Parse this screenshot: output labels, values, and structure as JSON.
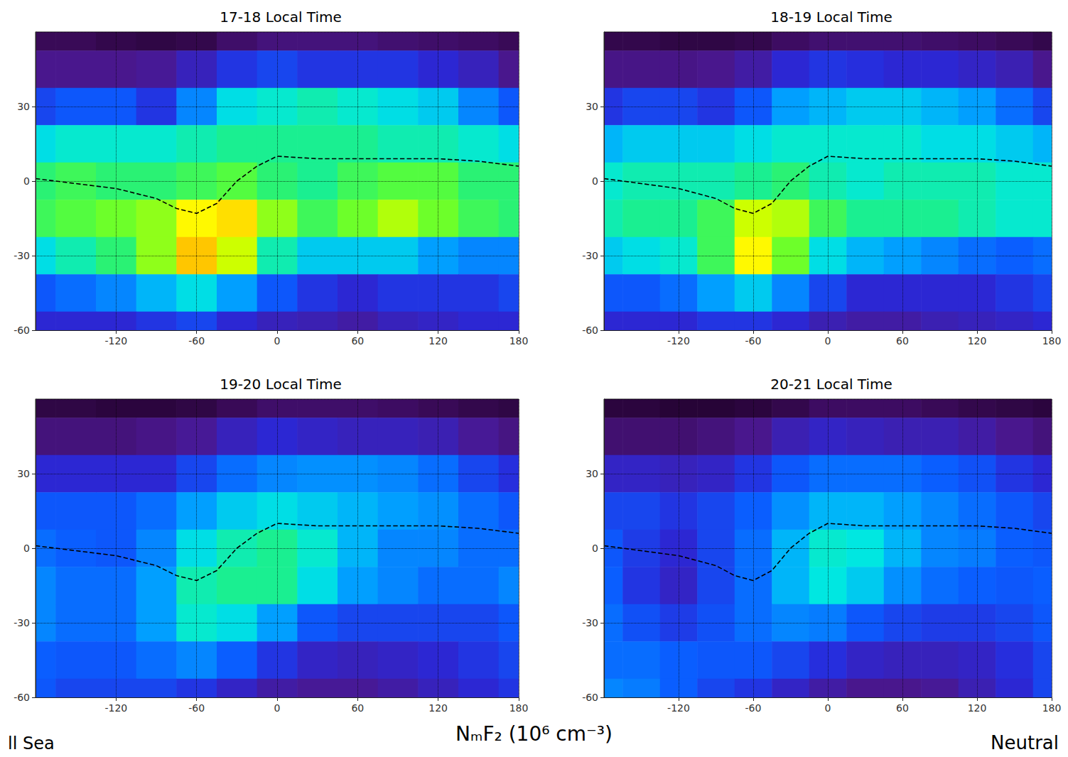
{
  "chart_data": [
    {
      "type": "heatmap",
      "title": "17-18 Local Time",
      "x": [
        -180,
        -150,
        -120,
        -90,
        -60,
        -30,
        0,
        30,
        60,
        90,
        120,
        150,
        180
      ],
      "y": [
        60,
        45,
        30,
        15,
        0,
        -15,
        -30,
        -45,
        -60
      ],
      "values": [
        [
          0.15,
          0.15,
          0.12,
          0.1,
          0.12,
          0.2,
          0.25,
          0.25,
          0.25,
          0.22,
          0.2,
          0.18,
          0.15
        ],
        [
          0.3,
          0.3,
          0.3,
          0.32,
          0.4,
          0.5,
          0.55,
          0.5,
          0.5,
          0.5,
          0.45,
          0.4,
          0.3
        ],
        [
          0.55,
          0.6,
          0.6,
          0.5,
          0.7,
          0.9,
          0.95,
          1.0,
          0.95,
          0.9,
          0.85,
          0.7,
          0.6
        ],
        [
          0.9,
          0.95,
          0.95,
          0.95,
          1.0,
          1.05,
          1.05,
          1.05,
          1.05,
          1.0,
          1.0,
          0.95,
          0.9
        ],
        [
          1.1,
          1.15,
          1.1,
          1.1,
          1.15,
          1.2,
          1.1,
          1.05,
          1.15,
          1.2,
          1.2,
          1.1,
          1.1
        ],
        [
          1.15,
          1.2,
          1.25,
          1.3,
          1.55,
          1.6,
          1.3,
          1.15,
          1.25,
          1.35,
          1.25,
          1.15,
          1.1
        ],
        [
          0.9,
          1.0,
          1.1,
          1.3,
          1.65,
          1.4,
          1.0,
          0.85,
          0.85,
          0.85,
          0.75,
          0.7,
          0.7
        ],
        [
          0.6,
          0.65,
          0.7,
          0.8,
          0.9,
          0.75,
          0.6,
          0.5,
          0.45,
          0.5,
          0.5,
          0.5,
          0.55
        ],
        [
          0.45,
          0.45,
          0.45,
          0.5,
          0.55,
          0.45,
          0.4,
          0.38,
          0.35,
          0.4,
          0.42,
          0.45,
          0.45
        ]
      ],
      "magnetic_equator": {
        "x": [
          -180,
          -150,
          -120,
          -90,
          -75,
          -60,
          -45,
          -30,
          -15,
          0,
          30,
          60,
          90,
          120,
          150,
          180
        ],
        "y": [
          1,
          -1,
          -3,
          -7,
          -11,
          -13,
          -9,
          0,
          6,
          10,
          9,
          9,
          9,
          9,
          8,
          6
        ],
        "line_style": "dashed",
        "color": "#000000"
      },
      "xlim": [
        -180,
        180
      ],
      "xticks": [
        -120,
        -60,
        0,
        60,
        120,
        180
      ],
      "ylim": [
        -60,
        60
      ],
      "yticks": [
        -60,
        -30,
        0,
        30
      ],
      "color_range": [
        0,
        2
      ],
      "grid": true
    },
    {
      "type": "heatmap",
      "title": "18-19 Local Time",
      "x": [
        -180,
        -150,
        -120,
        -90,
        -60,
        -30,
        0,
        30,
        60,
        90,
        120,
        150,
        180
      ],
      "y": [
        60,
        45,
        30,
        15,
        0,
        -15,
        -30,
        -45,
        -60
      ],
      "values": [
        [
          0.12,
          0.12,
          0.1,
          0.1,
          0.12,
          0.18,
          0.22,
          0.22,
          0.22,
          0.2,
          0.18,
          0.15,
          0.12
        ],
        [
          0.28,
          0.28,
          0.28,
          0.3,
          0.35,
          0.45,
          0.5,
          0.48,
          0.45,
          0.45,
          0.42,
          0.38,
          0.3
        ],
        [
          0.5,
          0.55,
          0.55,
          0.5,
          0.6,
          0.75,
          0.8,
          0.85,
          0.85,
          0.8,
          0.75,
          0.65,
          0.55
        ],
        [
          0.8,
          0.85,
          0.85,
          0.85,
          0.9,
          0.95,
          0.95,
          0.95,
          0.95,
          0.9,
          0.9,
          0.85,
          0.8
        ],
        [
          0.95,
          1.0,
          1.0,
          1.0,
          1.05,
          1.1,
          1.0,
          0.95,
          1.0,
          1.0,
          1.0,
          0.95,
          0.95
        ],
        [
          1.0,
          1.05,
          1.05,
          1.15,
          1.4,
          1.35,
          1.15,
          1.05,
          1.05,
          1.05,
          1.0,
          0.95,
          0.95
        ],
        [
          0.85,
          0.9,
          0.95,
          1.15,
          1.55,
          1.25,
          0.9,
          0.8,
          0.75,
          0.7,
          0.65,
          0.62,
          0.65
        ],
        [
          0.6,
          0.6,
          0.65,
          0.75,
          0.85,
          0.7,
          0.55,
          0.45,
          0.45,
          0.45,
          0.45,
          0.5,
          0.55
        ],
        [
          0.45,
          0.45,
          0.45,
          0.5,
          0.5,
          0.45,
          0.38,
          0.35,
          0.35,
          0.38,
          0.4,
          0.42,
          0.45
        ]
      ],
      "magnetic_equator": {
        "x": [
          -180,
          -150,
          -120,
          -90,
          -75,
          -60,
          -45,
          -30,
          -15,
          0,
          30,
          60,
          90,
          120,
          150,
          180
        ],
        "y": [
          1,
          -1,
          -3,
          -7,
          -11,
          -13,
          -9,
          0,
          6,
          10,
          9,
          9,
          9,
          9,
          8,
          6
        ],
        "line_style": "dashed",
        "color": "#000000"
      },
      "xlim": [
        -180,
        180
      ],
      "xticks": [
        -120,
        -60,
        0,
        60,
        120,
        180
      ],
      "ylim": [
        -60,
        60
      ],
      "yticks": [
        -60,
        -30,
        0,
        30
      ],
      "color_range": [
        0,
        2
      ],
      "grid": true
    },
    {
      "type": "heatmap",
      "title": "19-20 Local Time",
      "x": [
        -180,
        -150,
        -120,
        -90,
        -60,
        -30,
        0,
        30,
        60,
        90,
        120,
        150,
        180
      ],
      "y": [
        60,
        45,
        30,
        15,
        0,
        -15,
        -30,
        -45,
        -60
      ],
      "values": [
        [
          0.1,
          0.1,
          0.08,
          0.08,
          0.1,
          0.15,
          0.2,
          0.2,
          0.2,
          0.18,
          0.15,
          0.12,
          0.1
        ],
        [
          0.25,
          0.25,
          0.25,
          0.28,
          0.32,
          0.4,
          0.45,
          0.42,
          0.4,
          0.4,
          0.38,
          0.32,
          0.27
        ],
        [
          0.45,
          0.45,
          0.45,
          0.45,
          0.55,
          0.65,
          0.7,
          0.72,
          0.72,
          0.7,
          0.65,
          0.55,
          0.48
        ],
        [
          0.6,
          0.6,
          0.6,
          0.65,
          0.75,
          0.85,
          0.9,
          0.85,
          0.8,
          0.75,
          0.72,
          0.65,
          0.6
        ],
        [
          0.65,
          0.62,
          0.6,
          0.7,
          0.9,
          1.0,
          1.05,
          0.95,
          0.8,
          0.7,
          0.7,
          0.65,
          0.65
        ],
        [
          0.7,
          0.65,
          0.65,
          0.75,
          1.0,
          1.05,
          1.05,
          0.9,
          0.75,
          0.7,
          0.65,
          0.65,
          0.7
        ],
        [
          0.7,
          0.65,
          0.65,
          0.75,
          0.95,
          0.9,
          0.75,
          0.6,
          0.55,
          0.55,
          0.55,
          0.55,
          0.6
        ],
        [
          0.62,
          0.6,
          0.6,
          0.65,
          0.7,
          0.62,
          0.5,
          0.42,
          0.4,
          0.42,
          0.45,
          0.5,
          0.55
        ],
        [
          0.6,
          0.55,
          0.55,
          0.55,
          0.5,
          0.42,
          0.35,
          0.32,
          0.32,
          0.35,
          0.4,
          0.45,
          0.5
        ]
      ],
      "magnetic_equator": {
        "x": [
          -180,
          -150,
          -120,
          -90,
          -75,
          -60,
          -45,
          -30,
          -15,
          0,
          30,
          60,
          90,
          120,
          150,
          180
        ],
        "y": [
          1,
          -1,
          -3,
          -7,
          -11,
          -13,
          -9,
          0,
          6,
          10,
          9,
          9,
          9,
          9,
          8,
          6
        ],
        "line_style": "dashed",
        "color": "#000000"
      },
      "xlim": [
        -180,
        180
      ],
      "xticks": [
        -120,
        -60,
        0,
        60,
        120,
        180
      ],
      "ylim": [
        -60,
        60
      ],
      "yticks": [
        -60,
        -30,
        0,
        30
      ],
      "color_range": [
        0,
        2
      ],
      "grid": true
    },
    {
      "type": "heatmap",
      "title": "20-21 Local Time",
      "x": [
        -180,
        -150,
        -120,
        -90,
        -60,
        -30,
        0,
        30,
        60,
        90,
        120,
        150,
        180
      ],
      "y": [
        60,
        45,
        30,
        15,
        0,
        -15,
        -30,
        -45,
        -60
      ],
      "values": [
        [
          0.08,
          0.08,
          0.06,
          0.06,
          0.08,
          0.12,
          0.18,
          0.18,
          0.18,
          0.15,
          0.12,
          0.1,
          0.08
        ],
        [
          0.22,
          0.22,
          0.22,
          0.25,
          0.3,
          0.38,
          0.42,
          0.4,
          0.38,
          0.38,
          0.35,
          0.3,
          0.25
        ],
        [
          0.42,
          0.42,
          0.4,
          0.42,
          0.5,
          0.6,
          0.65,
          0.65,
          0.65,
          0.62,
          0.58,
          0.5,
          0.45
        ],
        [
          0.55,
          0.55,
          0.5,
          0.55,
          0.62,
          0.72,
          0.8,
          0.8,
          0.75,
          0.7,
          0.65,
          0.6,
          0.55
        ],
        [
          0.6,
          0.52,
          0.45,
          0.55,
          0.65,
          0.8,
          0.95,
          0.92,
          0.8,
          0.7,
          0.68,
          0.62,
          0.6
        ],
        [
          0.62,
          0.5,
          0.42,
          0.55,
          0.65,
          0.8,
          0.92,
          0.85,
          0.72,
          0.65,
          0.62,
          0.6,
          0.62
        ],
        [
          0.65,
          0.58,
          0.52,
          0.58,
          0.65,
          0.7,
          0.68,
          0.6,
          0.55,
          0.52,
          0.52,
          0.55,
          0.6
        ],
        [
          0.65,
          0.65,
          0.62,
          0.6,
          0.6,
          0.55,
          0.48,
          0.42,
          0.4,
          0.4,
          0.42,
          0.48,
          0.55
        ],
        [
          0.7,
          0.68,
          0.62,
          0.55,
          0.5,
          0.42,
          0.35,
          0.3,
          0.3,
          0.32,
          0.38,
          0.45,
          0.55
        ]
      ],
      "magnetic_equator": {
        "x": [
          -180,
          -150,
          -120,
          -90,
          -75,
          -60,
          -45,
          -30,
          -15,
          0,
          30,
          60,
          90,
          120,
          150,
          180
        ],
        "y": [
          1,
          -1,
          -3,
          -7,
          -11,
          -13,
          -9,
          0,
          6,
          10,
          9,
          9,
          9,
          9,
          8,
          6
        ],
        "line_style": "dashed",
        "color": "#000000"
      },
      "xlim": [
        -180,
        180
      ],
      "xticks": [
        -120,
        -60,
        0,
        60,
        120,
        180
      ],
      "ylim": [
        -60,
        60
      ],
      "yticks": [
        -60,
        -30,
        0,
        30
      ],
      "color_range": [
        0,
        2
      ],
      "grid": true
    }
  ],
  "caption": "NₘF₂ (10⁶ cm⁻³)",
  "left_note": "ll Sea",
  "right_note": "Neutral"
}
